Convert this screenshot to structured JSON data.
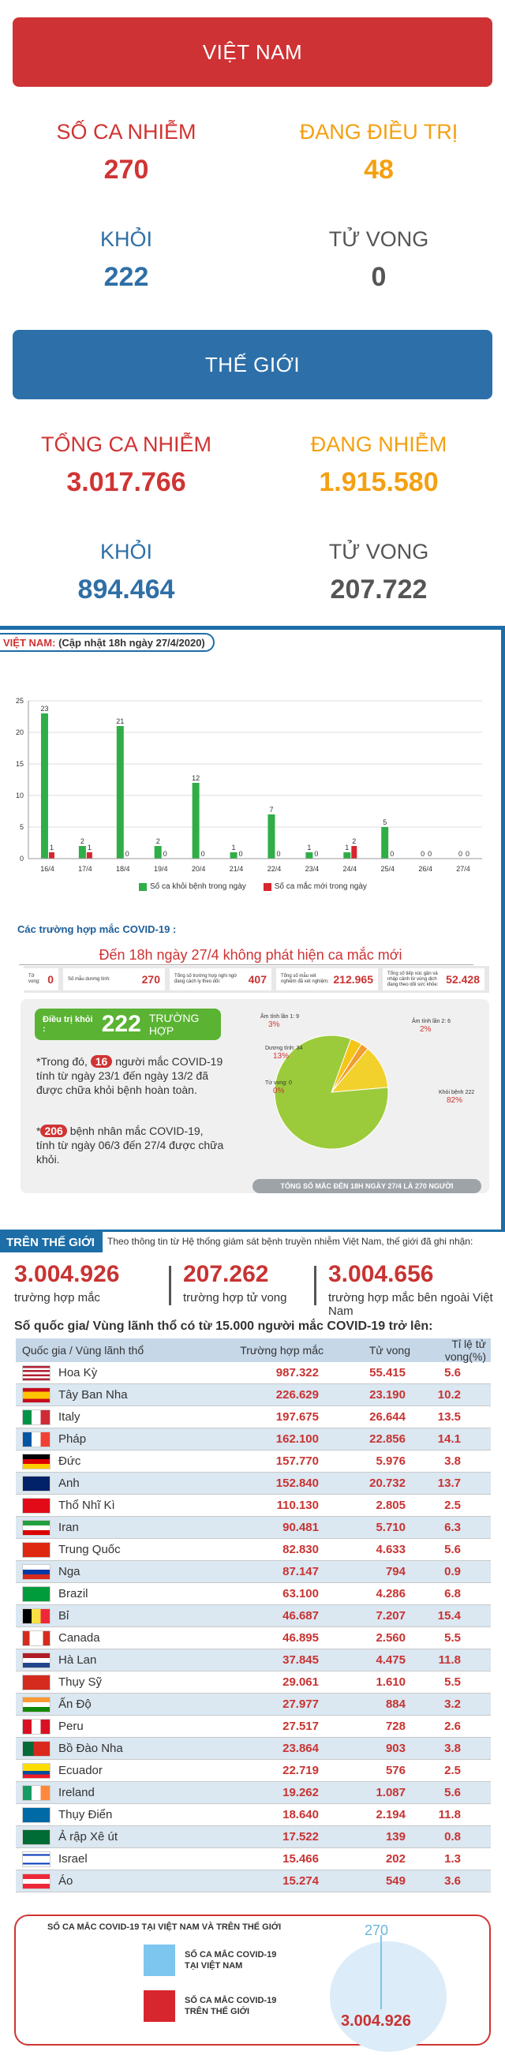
{
  "vn": {
    "title": "VIỆT NAM",
    "cases_label": "SỐ CA NHIỄM",
    "cases": "270",
    "treat_label": "ĐANG ĐIỀU TRỊ",
    "treat": "48",
    "rec_label": "KHỎI",
    "rec": "222",
    "death_label": "TỬ VONG",
    "death": "0"
  },
  "world": {
    "title": "THẾ GIỚI",
    "cases_label": "TỔNG CA NHIỄM",
    "cases": "3.017.766",
    "active_label": "ĐANG NHIỄM",
    "active": "1.915.580",
    "rec_label": "KHỎI",
    "rec": "894.464",
    "death_label": "TỬ VONG",
    "death": "207.722"
  },
  "daily": {
    "tag": "VIỆT NAM:",
    "update": "(Cập nhật 18h ngày 27/4/2020)",
    "legend_green": "Số ca khỏi bệnh trong ngày",
    "legend_red": "Số ca mắc mới trong ngày",
    "subtitle": "Các trường hợp mắc COVID-19 :",
    "note": "Đến 18h ngày 27/4 không phát hiện ca mắc mới",
    "kpis": [
      {
        "label": "Tử vong:",
        "value": "0"
      },
      {
        "label": "Số mẫu dương tính:",
        "value": "270"
      },
      {
        "label": "Tổng số trường hợp nghi ngờ đang cách ly theo dõi:",
        "value": "407"
      },
      {
        "label": "Tổng số mẫu xét nghiệm đã xét nghiệm:",
        "value": "212.965"
      },
      {
        "label": "Tổng số tiếp xúc gần và nhập cảnh từ vùng dịch đang theo dõi sức khỏe:",
        "value": "52.428"
      }
    ],
    "rec_label": "Điều trị khỏi :",
    "rec_value": "222",
    "rec_unit": "TRƯỜNG HỢP",
    "b1_pre": "*Trong đó,",
    "b1_num": "16",
    "b1_post": "người mắc COVID-19 tính từ ngày 23/1 đến ngày 13/2 đã được chữa khỏi bệnh hoàn toàn.",
    "b2_num": "206",
    "b2_post": "bệnh nhân mắc COVID-19, tính từ ngày 06/3 đến 27/4 được chữa khỏi.",
    "pie_labels": [
      {
        "name": "Âm tính lần 1: 9",
        "pct": "3%"
      },
      {
        "name": "Âm tính lần 2: 6",
        "pct": "2%"
      },
      {
        "name": "Dương tính: 34",
        "pct": "13%"
      },
      {
        "name": "Tử vong: 0",
        "pct": "0%"
      },
      {
        "name": "Khỏi bệnh 222",
        "pct": "82%"
      }
    ],
    "pie_footer": "TỔNG SỐ MẮC ĐẾN 18H NGÀY 27/4 LÀ 270 NGƯỜI"
  },
  "chart_data": {
    "type": "bar",
    "categories": [
      "16/4",
      "17/4",
      "18/4",
      "19/4",
      "20/4",
      "21/4",
      "22/4",
      "23/4",
      "24/4",
      "25/4",
      "26/4",
      "27/4"
    ],
    "series": [
      {
        "name": "Số ca khỏi bệnh trong ngày",
        "values": [
          23,
          2,
          21,
          2,
          12,
          1,
          7,
          1,
          1,
          5,
          0,
          0
        ],
        "color": "#2fae47"
      },
      {
        "name": "Số ca mắc mới trong ngày",
        "values": [
          1,
          1,
          0,
          0,
          0,
          0,
          0,
          0,
          2,
          0,
          0,
          0
        ],
        "color": "#d7262e"
      }
    ],
    "ylim": [
      0,
      25
    ],
    "yticks": [
      "0",
      "5",
      "10",
      "15",
      "20",
      "25"
    ]
  },
  "pie_values": [
    9,
    6,
    34,
    0,
    222
  ],
  "global": {
    "tag": "TRÊN THẾ GIỚI",
    "intro": "Theo thông tin từ Hệ thống giám sát bệnh truyền nhiễm Việt Nam, thế giới đã ghi nhận:",
    "s1": "3.004.926",
    "s1l": "trường hợp mắc",
    "s2": "207.262",
    "s2l": "trường hợp tử vong",
    "s3": "3.004.656",
    "s3l": "trường hợp mắc bên ngoài Việt Nam",
    "table_title": "Số quốc gia/ Vùng lãnh thổ có từ 15.000 người mắc COVID-19 trở lên:",
    "headers": [
      "Quốc gia / Vùng lãnh thổ",
      "Trường hợp mắc",
      "Tử vong",
      "Tỉ lệ tử vong(%)"
    ],
    "rows": [
      [
        "Hoa Kỳ",
        "987.322",
        "55.415",
        "5.6",
        "us"
      ],
      [
        "Tây Ban Nha",
        "226.629",
        "23.190",
        "10.2",
        "es"
      ],
      [
        "Italy",
        "197.675",
        "26.644",
        "13.5",
        "it"
      ],
      [
        "Pháp",
        "162.100",
        "22.856",
        "14.1",
        "fr"
      ],
      [
        "Đức",
        "157.770",
        "5.976",
        "3.8",
        "de"
      ],
      [
        "Anh",
        "152.840",
        "20.732",
        "13.7",
        "uk"
      ],
      [
        "Thổ Nhĩ Kì",
        "110.130",
        "2.805",
        "2.5",
        "tr"
      ],
      [
        "Iran",
        "90.481",
        "5.710",
        "6.3",
        "ir"
      ],
      [
        "Trung Quốc",
        "82.830",
        "4.633",
        "5.6",
        "cn"
      ],
      [
        "Nga",
        "87.147",
        "794",
        "0.9",
        "ru"
      ],
      [
        "Brazil",
        "63.100",
        "4.286",
        "6.8",
        "br"
      ],
      [
        "Bỉ",
        "46.687",
        "7.207",
        "15.4",
        "be"
      ],
      [
        "Canada",
        "46.895",
        "2.560",
        "5.5",
        "ca"
      ],
      [
        "Hà Lan",
        "37.845",
        "4.475",
        "11.8",
        "nl"
      ],
      [
        "Thụy Sỹ",
        "29.061",
        "1.610",
        "5.5",
        "ch"
      ],
      [
        "Ấn Độ",
        "27.977",
        "884",
        "3.2",
        "in"
      ],
      [
        "Peru",
        "27.517",
        "728",
        "2.6",
        "pe"
      ],
      [
        "Bồ Đào Nha",
        "23.864",
        "903",
        "3.8",
        "pt"
      ],
      [
        "Ecuador",
        "22.719",
        "576",
        "2.5",
        "ec"
      ],
      [
        "Ireland",
        "19.262",
        "1.087",
        "5.6",
        "ie"
      ],
      [
        "Thụy Điển",
        "18.640",
        "2.194",
        "11.8",
        "se"
      ],
      [
        "Ả rập Xê út",
        "17.522",
        "139",
        "0.8",
        "sa"
      ],
      [
        "Israel",
        "15.466",
        "202",
        "1.3",
        "il"
      ],
      [
        "Áo",
        "15.274",
        "549",
        "3.6",
        "at"
      ]
    ]
  },
  "compare": {
    "title": "SỐ CA MẮC COVID-19 TẠI VIỆT NAM VÀ TRÊN THẾ GIỚI",
    "vn_label1": "SỐ CA MẮC COVID-19",
    "vn_label2": "TẠI VIỆT NAM",
    "w_label1": "SỐ CA MẮC COVID-19",
    "w_label2": "TRÊN THẾ GIỚI",
    "vn_value": "270",
    "w_value": "3.004.926"
  }
}
